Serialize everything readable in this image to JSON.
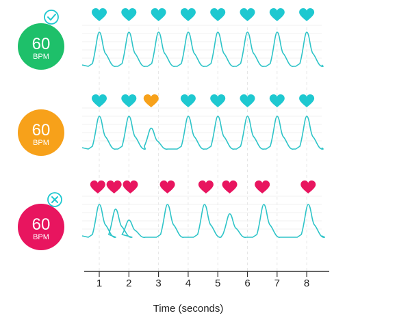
{
  "colors": {
    "normal": "#1ec06a",
    "irregular": "#f7a11a",
    "arrhythmia": "#e8155f",
    "heart_regular": "#1ec8d0",
    "heart_premature": "#f7a11a",
    "heart_irregular": "#e8155f",
    "trace": "#2ec4c8",
    "grid": "#e6e6e6",
    "axis": "#333333"
  },
  "time_axis": {
    "title": "Time (seconds)",
    "ticks": [
      "1",
      "2",
      "3",
      "4",
      "5",
      "6",
      "7",
      "8"
    ],
    "range": [
      0.5,
      8.8
    ]
  },
  "strips": [
    {
      "bpm_value": "60",
      "bpm_unit": "BPM",
      "badge_icon": "check-badge-icon",
      "hearts": [
        {
          "t": 1.0,
          "kind": "regular"
        },
        {
          "t": 2.0,
          "kind": "regular"
        },
        {
          "t": 3.0,
          "kind": "regular"
        },
        {
          "t": 4.0,
          "kind": "regular"
        },
        {
          "t": 5.0,
          "kind": "regular"
        },
        {
          "t": 6.0,
          "kind": "regular"
        },
        {
          "t": 7.0,
          "kind": "regular"
        },
        {
          "t": 8.0,
          "kind": "regular"
        }
      ],
      "beats": [
        1.0,
        2.0,
        3.0,
        4.0,
        5.0,
        6.0,
        7.0,
        8.0
      ],
      "beat_heights": [
        1,
        1,
        1,
        1,
        1,
        1,
        1,
        1
      ]
    },
    {
      "bpm_value": "60",
      "bpm_unit": "BPM",
      "badge_icon": "",
      "hearts": [
        {
          "t": 1.0,
          "kind": "regular"
        },
        {
          "t": 2.0,
          "kind": "regular"
        },
        {
          "t": 2.75,
          "kind": "premature"
        },
        {
          "t": 4.0,
          "kind": "regular"
        },
        {
          "t": 5.0,
          "kind": "regular"
        },
        {
          "t": 6.0,
          "kind": "regular"
        },
        {
          "t": 7.0,
          "kind": "regular"
        },
        {
          "t": 8.0,
          "kind": "regular"
        }
      ],
      "beats": [
        1.0,
        2.0,
        2.75,
        4.0,
        5.0,
        6.0,
        7.0,
        8.0
      ],
      "beat_heights": [
        1,
        1,
        0.62,
        1,
        1,
        1,
        1,
        1
      ]
    },
    {
      "bpm_value": "60",
      "bpm_unit": "BPM",
      "badge_icon": "x-badge-icon",
      "hearts": [
        {
          "t": 0.95,
          "kind": "irregular"
        },
        {
          "t": 1.5,
          "kind": "irregular"
        },
        {
          "t": 2.05,
          "kind": "irregular"
        },
        {
          "t": 3.3,
          "kind": "irregular"
        },
        {
          "t": 4.6,
          "kind": "irregular"
        },
        {
          "t": 5.4,
          "kind": "irregular"
        },
        {
          "t": 6.5,
          "kind": "irregular"
        },
        {
          "t": 8.05,
          "kind": "irregular"
        }
      ],
      "beats": [
        1.0,
        1.55,
        2.0,
        3.3,
        4.55,
        5.4,
        6.55,
        8.05
      ],
      "beat_heights": [
        1,
        0.85,
        0.5,
        1,
        1,
        0.7,
        1,
        1
      ]
    }
  ]
}
